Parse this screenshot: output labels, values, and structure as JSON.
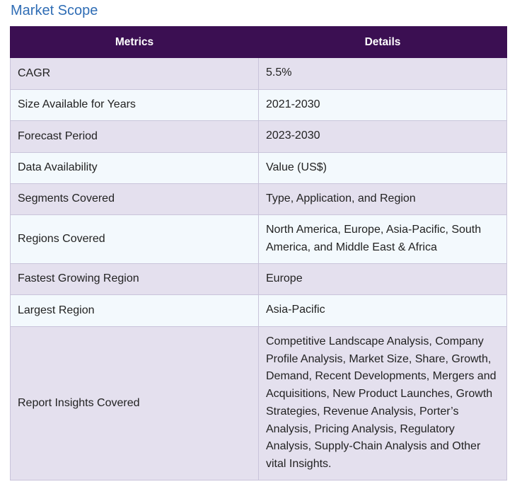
{
  "title": "Market Scope",
  "table": {
    "headers": [
      "Metrics",
      "Details"
    ],
    "rows": [
      {
        "metric": "CAGR",
        "detail": "5.5%"
      },
      {
        "metric": "Size Available for Years",
        "detail": "2021-2030"
      },
      {
        "metric": "Forecast Period",
        "detail": "2023-2030"
      },
      {
        "metric": "Data Availability",
        "detail": "Value (US$)"
      },
      {
        "metric": "Segments Covered",
        "detail": "Type, Application, and Region"
      },
      {
        "metric": "Regions Covered",
        "detail": "North America, Europe, Asia-Pacific, South America, and Middle East & Africa"
      },
      {
        "metric": "Fastest Growing Region",
        "detail": "Europe"
      },
      {
        "metric": "Largest Region",
        "detail": "Asia-Pacific"
      },
      {
        "metric": "Report Insights Covered",
        "detail": "Competitive Landscape Analysis, Company Profile Analysis, Market Size, Share, Growth, Demand, Recent Developments, Mergers and Acquisitions, New Product Launches, Growth Strategies, Revenue Analysis, Porter’s Analysis, Pricing Analysis, Regulatory Analysis, Supply-Chain Analysis and Other vital Insights."
      }
    ]
  },
  "colors": {
    "title": "#2f6db5",
    "header_bg": "#3b0f52",
    "row_odd_bg": "#e4e0ee",
    "row_even_bg": "#f3f9fd",
    "border": "#c9c4da"
  }
}
